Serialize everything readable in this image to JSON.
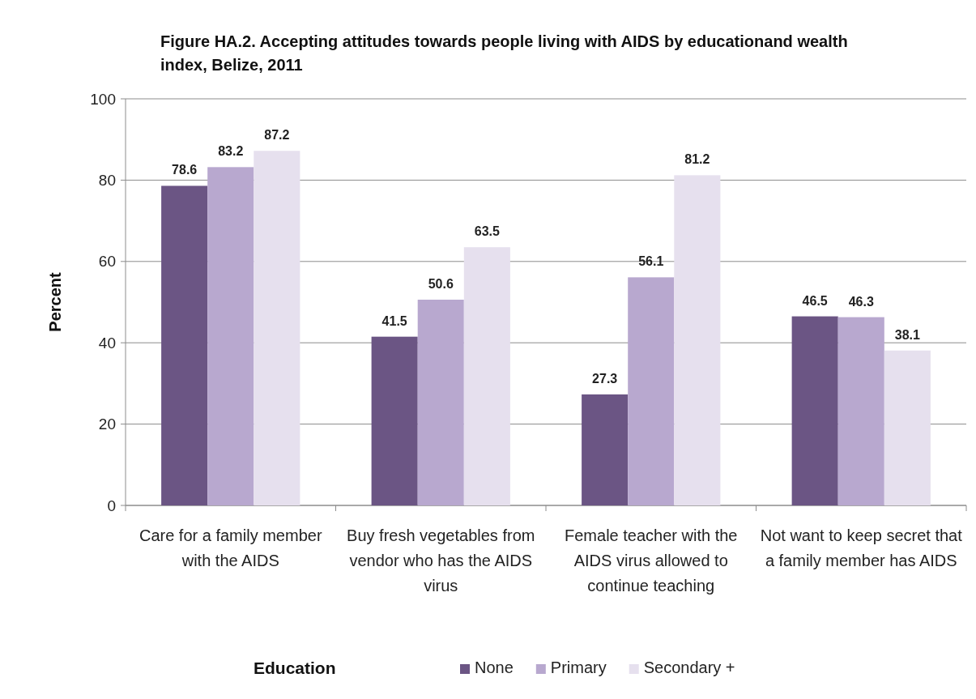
{
  "chart_data": {
    "type": "bar",
    "title": "Figure HA.2. Accepting attitudes towards people living with AIDS by educationand wealth index, Belize, 2011",
    "ylabel": "Percent",
    "legend_title": "Education",
    "categories": [
      "Care for a family member with the AIDS",
      "Buy fresh vegetables from vendor who has the AIDS virus",
      "Female teacher with the AIDS virus allowed to continue teaching",
      "Not want to keep secret that a family member has AIDS"
    ],
    "series": [
      {
        "name": "None",
        "color": "#6b5584",
        "values": [
          78.6,
          41.5,
          27.3,
          46.5
        ]
      },
      {
        "name": "Primary",
        "color": "#b8a8cf",
        "values": [
          83.2,
          50.6,
          56.1,
          46.3
        ]
      },
      {
        "name": "Secondary +",
        "color": "#e6e0ee",
        "values": [
          87.2,
          63.5,
          81.2,
          38.1
        ]
      }
    ],
    "ylim": [
      0,
      100
    ],
    "yticks": [
      0,
      20,
      40,
      60,
      80,
      100
    ],
    "grid": "y",
    "legend": "bottom",
    "data_labels": true
  }
}
